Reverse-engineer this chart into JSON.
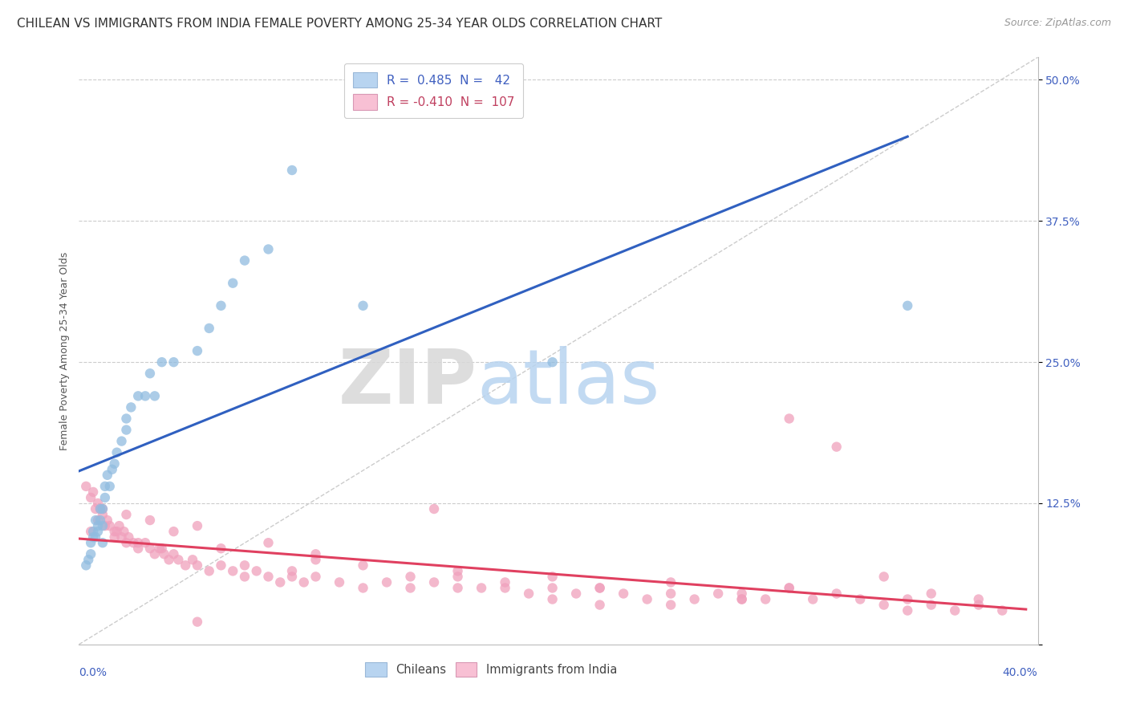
{
  "title": "CHILEAN VS IMMIGRANTS FROM INDIA FEMALE POVERTY AMONG 25-34 YEAR OLDS CORRELATION CHART",
  "source": "Source: ZipAtlas.com",
  "ylabel": "Female Poverty Among 25-34 Year Olds",
  "xlim": [
    0.0,
    0.405
  ],
  "ylim": [
    0.0,
    0.52
  ],
  "yticks": [
    0.0,
    0.125,
    0.25,
    0.375,
    0.5
  ],
  "ytick_labels": [
    "",
    "12.5%",
    "25.0%",
    "37.5%",
    "50.0%"
  ],
  "legend1_text": "R =  0.485  N =   42",
  "legend2_text": "R = -0.410  N =  107",
  "legend1_facecolor": "#b8d4f0",
  "legend2_facecolor": "#f8c0d4",
  "dot_color_blue": "#90bce0",
  "dot_color_pink": "#f0a0bc",
  "trend_color_blue": "#3060c0",
  "trend_color_pink": "#e04060",
  "r_text_color_blue": "#4060c0",
  "r_text_color_pink": "#c04060",
  "grid_color": "#cccccc",
  "ref_line_color": "#cccccc",
  "bg_color": "#ffffff",
  "watermark_text": "ZIPatlas",
  "watermark_color": "#d0e4f4",
  "title_fontsize": 11,
  "source_fontsize": 9,
  "legend_fontsize": 11,
  "tick_fontsize": 10,
  "ylabel_fontsize": 9,
  "blue_n": 42,
  "pink_n": 107,
  "blue_r": 0.485,
  "pink_r": -0.41,
  "blue_x": [
    0.003,
    0.004,
    0.005,
    0.005,
    0.006,
    0.006,
    0.007,
    0.007,
    0.008,
    0.008,
    0.009,
    0.009,
    0.01,
    0.01,
    0.01,
    0.011,
    0.011,
    0.012,
    0.013,
    0.014,
    0.015,
    0.016,
    0.018,
    0.02,
    0.02,
    0.022,
    0.025,
    0.028,
    0.03,
    0.032,
    0.035,
    0.04,
    0.05,
    0.055,
    0.06,
    0.065,
    0.07,
    0.08,
    0.09,
    0.12,
    0.2,
    0.35
  ],
  "blue_y": [
    0.07,
    0.075,
    0.08,
    0.09,
    0.095,
    0.1,
    0.095,
    0.11,
    0.1,
    0.105,
    0.11,
    0.12,
    0.09,
    0.105,
    0.12,
    0.13,
    0.14,
    0.15,
    0.14,
    0.155,
    0.16,
    0.17,
    0.18,
    0.19,
    0.2,
    0.21,
    0.22,
    0.22,
    0.24,
    0.22,
    0.25,
    0.25,
    0.26,
    0.28,
    0.3,
    0.32,
    0.34,
    0.35,
    0.42,
    0.3,
    0.25,
    0.3
  ],
  "pink_x": [
    0.003,
    0.005,
    0.006,
    0.007,
    0.008,
    0.008,
    0.009,
    0.01,
    0.011,
    0.012,
    0.013,
    0.015,
    0.016,
    0.017,
    0.018,
    0.019,
    0.02,
    0.021,
    0.023,
    0.025,
    0.028,
    0.03,
    0.032,
    0.034,
    0.036,
    0.038,
    0.04,
    0.042,
    0.045,
    0.048,
    0.05,
    0.055,
    0.06,
    0.065,
    0.07,
    0.075,
    0.08,
    0.085,
    0.09,
    0.095,
    0.1,
    0.11,
    0.12,
    0.13,
    0.14,
    0.15,
    0.16,
    0.17,
    0.18,
    0.19,
    0.2,
    0.21,
    0.22,
    0.23,
    0.24,
    0.25,
    0.26,
    0.27,
    0.28,
    0.29,
    0.3,
    0.31,
    0.32,
    0.33,
    0.34,
    0.35,
    0.36,
    0.37,
    0.38,
    0.39,
    0.005,
    0.01,
    0.015,
    0.02,
    0.025,
    0.03,
    0.035,
    0.04,
    0.05,
    0.06,
    0.07,
    0.08,
    0.09,
    0.1,
    0.12,
    0.14,
    0.16,
    0.18,
    0.2,
    0.22,
    0.25,
    0.28,
    0.3,
    0.32,
    0.34,
    0.36,
    0.38,
    0.15,
    0.2,
    0.25,
    0.3,
    0.35,
    0.28,
    0.22,
    0.16,
    0.1,
    0.05
  ],
  "pink_y": [
    0.14,
    0.13,
    0.135,
    0.12,
    0.125,
    0.11,
    0.12,
    0.115,
    0.105,
    0.11,
    0.105,
    0.1,
    0.1,
    0.105,
    0.095,
    0.1,
    0.09,
    0.095,
    0.09,
    0.085,
    0.09,
    0.085,
    0.08,
    0.085,
    0.08,
    0.075,
    0.08,
    0.075,
    0.07,
    0.075,
    0.07,
    0.065,
    0.07,
    0.065,
    0.06,
    0.065,
    0.06,
    0.055,
    0.06,
    0.055,
    0.06,
    0.055,
    0.05,
    0.055,
    0.05,
    0.055,
    0.05,
    0.05,
    0.05,
    0.045,
    0.05,
    0.045,
    0.05,
    0.045,
    0.04,
    0.045,
    0.04,
    0.045,
    0.04,
    0.04,
    0.05,
    0.04,
    0.045,
    0.04,
    0.035,
    0.04,
    0.035,
    0.03,
    0.035,
    0.03,
    0.1,
    0.12,
    0.095,
    0.115,
    0.09,
    0.11,
    0.085,
    0.1,
    0.105,
    0.085,
    0.07,
    0.09,
    0.065,
    0.08,
    0.07,
    0.06,
    0.065,
    0.055,
    0.06,
    0.05,
    0.055,
    0.045,
    0.2,
    0.175,
    0.06,
    0.045,
    0.04,
    0.12,
    0.04,
    0.035,
    0.05,
    0.03,
    0.04,
    0.035,
    0.06,
    0.075,
    0.02
  ]
}
